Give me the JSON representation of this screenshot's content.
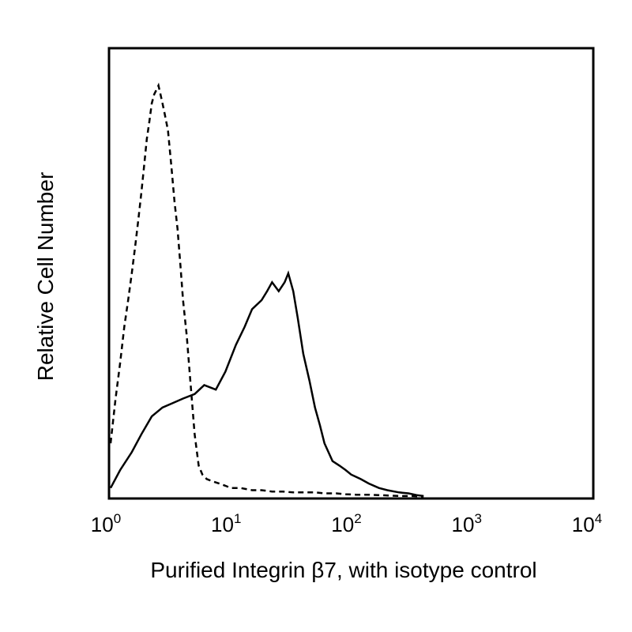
{
  "chart_data": {
    "type": "histogram",
    "title": "",
    "xlabel": "Purified Integrin β7, with isotype control",
    "ylabel": "Relative Cell Number",
    "x_scale": "log",
    "xlim": [
      1,
      10000
    ],
    "ylim": [
      0,
      100
    ],
    "x_ticks": [
      {
        "base": "10",
        "exp": "0",
        "value": 1
      },
      {
        "base": "10",
        "exp": "1",
        "value": 10
      },
      {
        "base": "10",
        "exp": "2",
        "value": 100
      },
      {
        "base": "10",
        "exp": "3",
        "value": 1000
      },
      {
        "base": "10",
        "exp": "4",
        "value": 10000
      }
    ],
    "grid": false,
    "legend": "none",
    "series": [
      {
        "style": "dashed",
        "color": "#000000",
        "x": [
          1.0,
          1.1,
          1.2,
          1.3,
          1.4,
          1.5,
          1.6,
          1.7,
          1.8,
          1.9,
          2.0,
          2.1,
          2.2,
          2.3,
          2.4,
          2.5,
          2.6,
          2.7,
          2.8,
          3.0,
          3.2,
          3.4,
          3.6,
          3.8,
          4.0,
          4.3,
          4.6,
          5.0,
          5.4,
          5.8,
          6.3,
          7.0,
          8.0,
          9.0,
          10,
          12,
          15,
          18,
          22,
          27,
          33,
          40,
          50,
          60,
          75,
          90,
          110,
          140,
          170,
          210,
          260,
          320,
          400
        ],
        "y": [
          12,
          22,
          30,
          38,
          44,
          50,
          56,
          62,
          68,
          74,
          80,
          84,
          88,
          90,
          91,
          92,
          90,
          88,
          86,
          82,
          74,
          66,
          60,
          52,
          44,
          36,
          26,
          14,
          7,
          5,
          4,
          3.5,
          3,
          2.5,
          2,
          2,
          1.5,
          1.5,
          1.2,
          1.2,
          1,
          1,
          1,
          0.8,
          0.8,
          0.6,
          0.5,
          0.5,
          0.4,
          0.3,
          0.2,
          0.2,
          0.1
        ]
      },
      {
        "style": "solid",
        "color": "#000000",
        "x": [
          1.0,
          1.2,
          1.5,
          1.8,
          2.2,
          2.7,
          3.3,
          4.0,
          5.0,
          6.0,
          7.5,
          9.0,
          11,
          13,
          15,
          18,
          20,
          22,
          25,
          28,
          30,
          33,
          36,
          40,
          45,
          50,
          55,
          60,
          70,
          80,
          90,
          100,
          120,
          140,
          170,
          200,
          250,
          300,
          350,
          400
        ],
        "y": [
          2,
          6,
          10,
          14,
          18,
          20,
          21,
          22,
          23,
          25,
          24,
          28,
          34,
          38,
          42,
          44,
          46,
          48,
          46,
          48,
          50,
          46,
          40,
          32,
          26,
          20,
          16,
          12,
          8,
          7,
          6,
          5,
          4,
          3,
          2,
          1.5,
          1,
          0.8,
          0.4,
          0.2
        ]
      }
    ]
  }
}
